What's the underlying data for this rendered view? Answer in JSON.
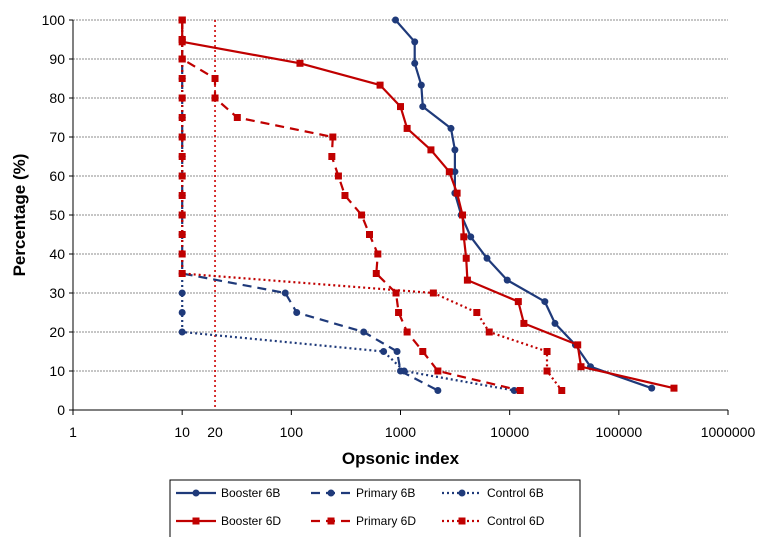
{
  "chart_data": {
    "type": "line",
    "title": "",
    "xlabel": "Opsonic index",
    "ylabel": "Percentage (%)",
    "x_scale": "log",
    "xlim": [
      1,
      1000000
    ],
    "ylim": [
      0,
      100
    ],
    "x_ticks": [
      1,
      10,
      20,
      100,
      1000,
      10000,
      100000,
      1000000
    ],
    "x_tick_labels": [
      "1",
      "10",
      "20",
      "100",
      "1000",
      "10000",
      "100000",
      "1000000"
    ],
    "y_ticks": [
      0,
      10,
      20,
      30,
      40,
      50,
      60,
      70,
      80,
      90,
      100
    ],
    "grid": "horizontal",
    "reference_lines": [
      {
        "axis": "x",
        "value": 20,
        "color": "#cc0000",
        "style": "dotted"
      }
    ],
    "legend_position": "bottom",
    "series": [
      {
        "name": "Booster 6B",
        "color": "#1f3a7a",
        "line": "solid",
        "marker": "circle",
        "points": [
          [
            900,
            100
          ],
          [
            1350,
            94.4
          ],
          [
            1350,
            88.9
          ],
          [
            1550,
            83.3
          ],
          [
            1600,
            77.8
          ],
          [
            2900,
            72.2
          ],
          [
            3150,
            66.7
          ],
          [
            3150,
            61.1
          ],
          [
            3150,
            55.6
          ],
          [
            3600,
            50
          ],
          [
            4400,
            44.4
          ],
          [
            6200,
            38.9
          ],
          [
            9500,
            33.3
          ],
          [
            21000,
            27.8
          ],
          [
            26000,
            22.2
          ],
          [
            40000,
            16.7
          ],
          [
            55000,
            11.1
          ],
          [
            200000,
            5.6
          ]
        ]
      },
      {
        "name": "Primary 6B",
        "color": "#1f3a7a",
        "line": "dashed",
        "marker": "circle",
        "points": [
          [
            10,
            100
          ],
          [
            10,
            95
          ],
          [
            10,
            90
          ],
          [
            10,
            85
          ],
          [
            10,
            80
          ],
          [
            10,
            75
          ],
          [
            10,
            70
          ],
          [
            10,
            65
          ],
          [
            10,
            60
          ],
          [
            10,
            55
          ],
          [
            10,
            50
          ],
          [
            10,
            45
          ],
          [
            10,
            40
          ],
          [
            10,
            35
          ],
          [
            88,
            30
          ],
          [
            112,
            25
          ],
          [
            460,
            20
          ],
          [
            930,
            15
          ],
          [
            1000,
            10
          ],
          [
            2200,
            5
          ]
        ]
      },
      {
        "name": "Control 6B",
        "color": "#1f3a7a",
        "line": "dotted",
        "marker": "circle",
        "points": [
          [
            10,
            100
          ],
          [
            10,
            95
          ],
          [
            10,
            90
          ],
          [
            10,
            85
          ],
          [
            10,
            80
          ],
          [
            10,
            75
          ],
          [
            10,
            70
          ],
          [
            10,
            65
          ],
          [
            10,
            60
          ],
          [
            10,
            55
          ],
          [
            10,
            50
          ],
          [
            10,
            45
          ],
          [
            10,
            40
          ],
          [
            10,
            35
          ],
          [
            10,
            30
          ],
          [
            10,
            25
          ],
          [
            10,
            20
          ],
          [
            700,
            15
          ],
          [
            1080,
            10
          ],
          [
            11000,
            5
          ]
        ]
      },
      {
        "name": "Booster 6D",
        "color": "#c00000",
        "line": "solid",
        "marker": "square",
        "points": [
          [
            10,
            100
          ],
          [
            10,
            94.4
          ],
          [
            120,
            88.9
          ],
          [
            650,
            83.3
          ],
          [
            1000,
            77.8
          ],
          [
            1150,
            72.2
          ],
          [
            1900,
            66.7
          ],
          [
            2800,
            61.1
          ],
          [
            3300,
            55.6
          ],
          [
            3700,
            50
          ],
          [
            3800,
            44.4
          ],
          [
            4000,
            38.9
          ],
          [
            4100,
            33.3
          ],
          [
            12000,
            27.8
          ],
          [
            13500,
            22.2
          ],
          [
            42000,
            16.7
          ],
          [
            45000,
            11.1
          ],
          [
            320000,
            5.6
          ]
        ]
      },
      {
        "name": "Primary 6D",
        "color": "#c00000",
        "line": "dashed",
        "marker": "square",
        "points": [
          [
            10,
            100
          ],
          [
            10,
            95
          ],
          [
            10,
            90
          ],
          [
            20,
            85
          ],
          [
            20,
            80
          ],
          [
            32,
            75
          ],
          [
            240,
            70
          ],
          [
            235,
            65
          ],
          [
            270,
            60
          ],
          [
            310,
            55
          ],
          [
            440,
            50
          ],
          [
            520,
            45
          ],
          [
            620,
            40
          ],
          [
            600,
            35
          ],
          [
            910,
            30
          ],
          [
            960,
            25
          ],
          [
            1150,
            20
          ],
          [
            1600,
            15
          ],
          [
            2200,
            10
          ],
          [
            12500,
            5
          ]
        ]
      },
      {
        "name": "Control 6D",
        "color": "#c00000",
        "line": "dotted",
        "marker": "square",
        "points": [
          [
            10,
            100
          ],
          [
            10,
            95
          ],
          [
            10,
            90
          ],
          [
            10,
            85
          ],
          [
            10,
            80
          ],
          [
            10,
            75
          ],
          [
            10,
            70
          ],
          [
            10,
            65
          ],
          [
            10,
            60
          ],
          [
            10,
            55
          ],
          [
            10,
            50
          ],
          [
            10,
            45
          ],
          [
            10,
            40
          ],
          [
            10,
            35
          ],
          [
            2000,
            30
          ],
          [
            5000,
            25
          ],
          [
            6500,
            20
          ],
          [
            22000,
            15
          ],
          [
            22000,
            10
          ],
          [
            30000,
            5
          ]
        ]
      }
    ]
  }
}
